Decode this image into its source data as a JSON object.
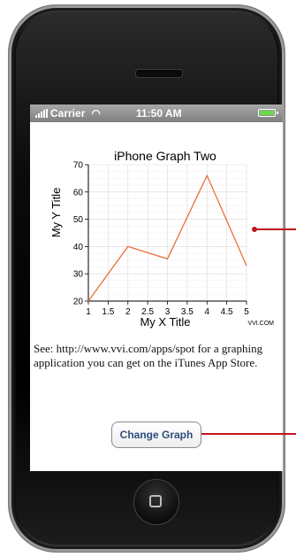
{
  "status_bar": {
    "carrier": "Carrier",
    "time": "11:50 AM",
    "wifi_icon": "wifi-icon",
    "battery_icon": "battery-icon"
  },
  "chart_data": {
    "type": "line",
    "title": "iPhone Graph Two",
    "xlabel": "My X Title",
    "ylabel": "My Y Title",
    "x": [
      1,
      2,
      3,
      4,
      5
    ],
    "series": [
      {
        "values": [
          20,
          40,
          35.5,
          66,
          33
        ]
      }
    ],
    "xlim": [
      1,
      5
    ],
    "ylim": [
      20,
      70
    ],
    "x_ticks": [
      "1",
      "1.5",
      "2",
      "2.5",
      "3",
      "3.5",
      "4",
      "4.5",
      "5"
    ],
    "y_ticks": [
      "20",
      "30",
      "40",
      "50",
      "60",
      "70"
    ],
    "grid": true,
    "line_color": "#e8703a",
    "watermark": "VVI.COM"
  },
  "description": "See: http://www.vvi.com/apps/spot for a graphing application you can get on the iTunes App Store.",
  "button": {
    "label": "Change Graph"
  },
  "colors": {
    "callout": "#c0151b",
    "button_text": "#2e4c7e"
  }
}
